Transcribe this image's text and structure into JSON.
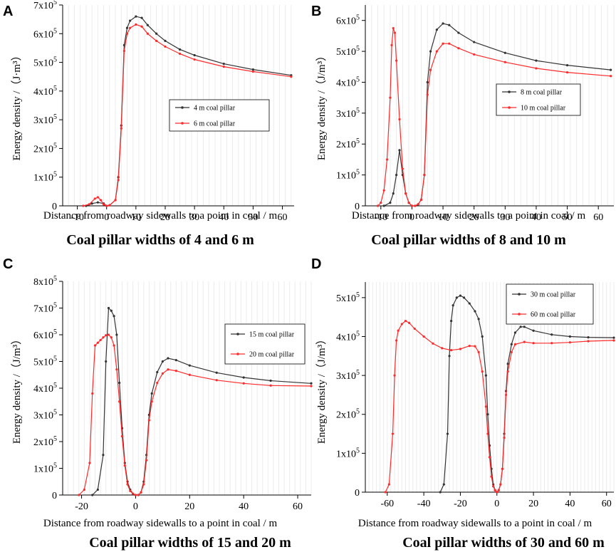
{
  "panels": [
    {
      "letter": "A",
      "caption": "Coal pillar widths of 4 and 6 m",
      "chart_data": {
        "type": "line",
        "xlabel": "Distance from roadway sidewalls to a point in coal / m",
        "ylabel": "Energy density  /（J·m³）",
        "xlim": [
          -15,
          64
        ],
        "ylim": [
          0,
          700000
        ],
        "xticks": [
          -10,
          0,
          10,
          20,
          30,
          40,
          50,
          60
        ],
        "yticks": [
          {
            "value": 0,
            "mant": "0",
            "exp": ""
          },
          {
            "value": 100000,
            "mant": "1x10",
            "exp": "5"
          },
          {
            "value": 200000,
            "mant": "2x10",
            "exp": "5"
          },
          {
            "value": 300000,
            "mant": "3x10",
            "exp": "5"
          },
          {
            "value": 400000,
            "mant": "4x10",
            "exp": "5"
          },
          {
            "value": 500000,
            "mant": "5x10",
            "exp": "5"
          },
          {
            "value": 600000,
            "mant": "6x10",
            "exp": "5"
          },
          {
            "value": 700000,
            "mant": "7x10",
            "exp": "5"
          }
        ],
        "legend_position": "center",
        "series": [
          {
            "name": "4 m  coal pillar",
            "color": "#333333",
            "x": [
              -7,
              -5,
              -3,
              -1,
              0,
              1,
              3,
              4,
              5,
              6,
              7,
              8,
              10,
              12,
              14,
              17,
              20,
              25,
              30,
              40,
              50,
              63
            ],
            "y": [
              0,
              8000,
              12000,
              8000,
              0,
              2000,
              20000,
              100000,
              280000,
              560000,
              620000,
              645000,
              660000,
              655000,
              630000,
              600000,
              575000,
              545000,
              525000,
              495000,
              475000,
              455000
            ]
          },
          {
            "name": "6 m  coal pillar",
            "color": "#ff2a2a",
            "x": [
              -8,
              -6,
              -4,
              -3,
              -2,
              -1,
              0,
              1,
              3,
              4,
              5,
              6,
              7,
              8,
              10,
              12,
              14,
              17,
              20,
              25,
              30,
              40,
              50,
              63
            ],
            "y": [
              0,
              5000,
              25000,
              30000,
              20000,
              5000,
              0,
              2000,
              20000,
              90000,
              270000,
              540000,
              600000,
              620000,
              632000,
              625000,
              600000,
              575000,
              555000,
              530000,
              510000,
              485000,
              468000,
              450000
            ]
          }
        ]
      }
    },
    {
      "letter": "B",
      "caption": "Coal pillar widths of 8 and 10 m",
      "chart_data": {
        "type": "line",
        "xlabel": "Distance from roadway sidewalls to a point in coal / m",
        "ylabel": "Energy density  /（J/m³）",
        "xlim": [
          -15,
          65
        ],
        "ylim": [
          0,
          650000
        ],
        "xticks": [
          -10,
          0,
          10,
          20,
          30,
          40,
          50,
          60
        ],
        "yticks": [
          {
            "value": 0,
            "mant": "0",
            "exp": ""
          },
          {
            "value": 100000,
            "mant": "1x10",
            "exp": "5"
          },
          {
            "value": 200000,
            "mant": "2x10",
            "exp": "5"
          },
          {
            "value": 300000,
            "mant": "3x10",
            "exp": "5"
          },
          {
            "value": 400000,
            "mant": "4x10",
            "exp": "5"
          },
          {
            "value": 500000,
            "mant": "5x10",
            "exp": "5"
          },
          {
            "value": 600000,
            "mant": "6x10",
            "exp": "5"
          }
        ],
        "legend_position": "top-right",
        "series": [
          {
            "name": "8 m  coal pillar",
            "color": "#333333",
            "x": [
              -9,
              -7,
              -6,
              -5,
              -4,
              -3,
              -2,
              -1,
              0,
              1,
              2,
              3,
              4,
              5,
              6,
              8,
              10,
              12,
              15,
              20,
              30,
              40,
              50,
              64
            ],
            "y": [
              0,
              10000,
              40000,
              100000,
              180000,
              100000,
              40000,
              10000,
              0,
              0,
              5000,
              20000,
              100000,
              400000,
              500000,
              570000,
              590000,
              585000,
              560000,
              530000,
              495000,
              470000,
              455000,
              440000
            ]
          },
          {
            "name": "10 m  coal pillar",
            "color": "#ff2a2a",
            "x": [
              -11,
              -10,
              -9,
              -8,
              -7,
              -6.5,
              -6,
              -5.5,
              -5,
              -4,
              -3,
              -2,
              -1,
              0,
              1,
              2,
              3,
              4,
              5,
              6,
              8,
              10,
              12,
              15,
              20,
              30,
              40,
              50,
              64
            ],
            "y": [
              0,
              10000,
              50000,
              150000,
              350000,
              520000,
              575000,
              560000,
              470000,
              280000,
              120000,
              40000,
              10000,
              0,
              0,
              5000,
              20000,
              100000,
              360000,
              440000,
              500000,
              525000,
              525000,
              510000,
              490000,
              465000,
              445000,
              432000,
              420000
            ]
          }
        ]
      }
    },
    {
      "letter": "C",
      "caption": "Coal pillar widths of 15 and 20 m",
      "chart_data": {
        "type": "line",
        "xlabel": "Distance from roadway sidewalls to a point in coal / m",
        "ylabel": "Energy density /（J/m³）",
        "xlim": [
          -27,
          65
        ],
        "ylim": [
          0,
          800000
        ],
        "xticks": [
          -20,
          0,
          20,
          40,
          60
        ],
        "yticks": [
          {
            "value": 0,
            "mant": "0",
            "exp": ""
          },
          {
            "value": 100000,
            "mant": "1x10",
            "exp": "5"
          },
          {
            "value": 200000,
            "mant": "2x10",
            "exp": "5"
          },
          {
            "value": 300000,
            "mant": "3x10",
            "exp": "5"
          },
          {
            "value": 400000,
            "mant": "4x10",
            "exp": "5"
          },
          {
            "value": 500000,
            "mant": "5x10",
            "exp": "5"
          },
          {
            "value": 600000,
            "mant": "6x10",
            "exp": "5"
          },
          {
            "value": 700000,
            "mant": "7x10",
            "exp": "5"
          },
          {
            "value": 800000,
            "mant": "8x10",
            "exp": "5"
          }
        ],
        "legend_position": "top-right",
        "series": [
          {
            "name": "15 m  coal pillar",
            "color": "#333333",
            "x": [
              -16,
              -14,
              -12,
              -11,
              -10,
              -9,
              -8,
              -7,
              -6,
              -5,
              -4,
              -3,
              -2,
              -1,
              0,
              1,
              2,
              3,
              4,
              5,
              6,
              8,
              10,
              12,
              15,
              20,
              30,
              40,
              50,
              65
            ],
            "y": [
              0,
              20000,
              150000,
              500000,
              700000,
              690000,
              670000,
              600000,
              420000,
              250000,
              120000,
              50000,
              20000,
              5000,
              0,
              0,
              10000,
              50000,
              150000,
              300000,
              380000,
              460000,
              500000,
              512000,
              505000,
              485000,
              458000,
              440000,
              428000,
              418000
            ]
          },
          {
            "name": "20 m  coal pillar",
            "color": "#ff2a2a",
            "x": [
              -21,
              -19,
              -17,
              -16,
              -15,
              -14,
              -13,
              -12,
              -11,
              -10,
              -9,
              -8,
              -7,
              -6,
              -5,
              -4,
              -3,
              -2,
              -1,
              0,
              1,
              2,
              3,
              4,
              5,
              6,
              8,
              10,
              12,
              15,
              20,
              30,
              40,
              50,
              65
            ],
            "y": [
              0,
              20000,
              120000,
              380000,
              560000,
              570000,
              580000,
              590000,
              598000,
              600000,
              590000,
              560000,
              470000,
              350000,
              220000,
              110000,
              40000,
              15000,
              5000,
              0,
              0,
              10000,
              40000,
              130000,
              280000,
              350000,
              420000,
              455000,
              470000,
              465000,
              450000,
              430000,
              418000,
              410000,
              408000
            ]
          }
        ]
      }
    },
    {
      "letter": "D",
      "caption": "Coal pillar widths of 30 and 60 m",
      "chart_data": {
        "type": "line",
        "xlabel": "Distance from roadway sidewalls to a point in coal / m",
        "ylabel": "Energy density /（J/m³）",
        "xlim": [
          -72,
          64
        ],
        "ylim": [
          0,
          540000
        ],
        "xticks": [
          -60,
          -40,
          -20,
          0,
          20,
          40,
          60
        ],
        "yticks": [
          {
            "value": 0,
            "mant": "0",
            "exp": ""
          },
          {
            "value": 100000,
            "mant": "1x10",
            "exp": "5"
          },
          {
            "value": 200000,
            "mant": "2x10",
            "exp": "5"
          },
          {
            "value": 300000,
            "mant": "3x10",
            "exp": "5"
          },
          {
            "value": 400000,
            "mant": "4x10",
            "exp": "5"
          },
          {
            "value": 500000,
            "mant": "5x10",
            "exp": "5"
          }
        ],
        "legend_position": "top-right",
        "series": [
          {
            "name": "30 m  coal pillar",
            "color": "#333333",
            "x": [
              -31,
              -29,
              -27,
              -26,
              -25,
              -24,
              -22,
              -20,
              -18,
              -15,
              -12,
              -10,
              -8,
              -6,
              -5,
              -4,
              -3,
              -2,
              -1,
              0,
              1,
              2,
              3,
              4,
              5,
              6,
              8,
              10,
              13,
              15,
              20,
              30,
              40,
              50,
              64
            ],
            "y": [
              0,
              20000,
              150000,
              350000,
              440000,
              480000,
              500000,
              505000,
              500000,
              485000,
              465000,
              445000,
              400000,
              300000,
              200000,
              120000,
              60000,
              20000,
              5000,
              0,
              5000,
              20000,
              60000,
              150000,
              260000,
              330000,
              380000,
              410000,
              425000,
              425000,
              415000,
              405000,
              400000,
              398000,
              397000
            ]
          },
          {
            "name": "60 m  coal pillar",
            "color": "#ff2a2a",
            "x": [
              -61,
              -59,
              -57,
              -56,
              -55,
              -54,
              -52,
              -50,
              -48,
              -45,
              -40,
              -35,
              -30,
              -25,
              -20,
              -15,
              -12,
              -10,
              -8,
              -6,
              -5,
              -4,
              -3,
              -2,
              -1,
              0,
              1,
              2,
              3,
              4,
              5,
              6,
              8,
              10,
              15,
              20,
              30,
              40,
              50,
              64
            ],
            "y": [
              0,
              20000,
              150000,
              300000,
              390000,
              415000,
              432000,
              440000,
              435000,
              420000,
              400000,
              382000,
              370000,
              365000,
              368000,
              376000,
              375000,
              360000,
              310000,
              220000,
              150000,
              90000,
              40000,
              15000,
              5000,
              0,
              5000,
              20000,
              60000,
              140000,
              250000,
              310000,
              360000,
              380000,
              386000,
              383000,
              383000,
              385000,
              388000,
              390000
            ]
          }
        ]
      }
    }
  ]
}
